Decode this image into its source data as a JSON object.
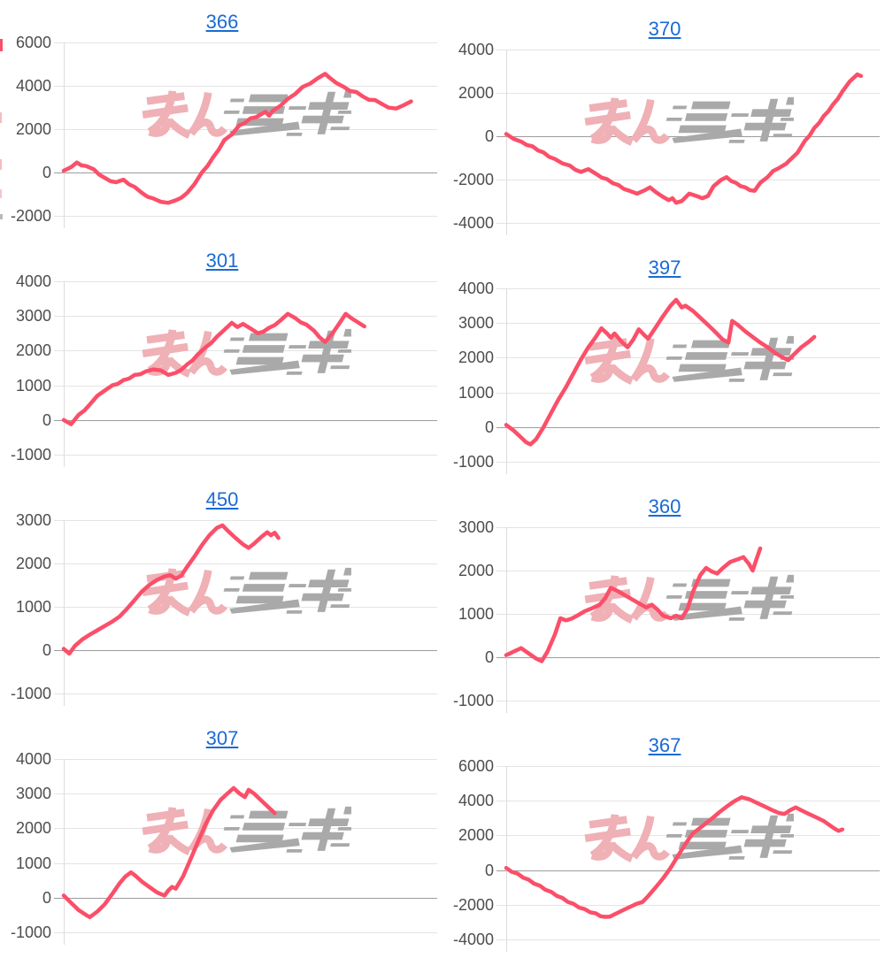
{
  "styles": {
    "line_color": "#fb4f69",
    "grid_color": "#e4e4e4",
    "zero_line_color": "#9c9c9c",
    "axis_border_color": "#dcdcdc",
    "label_color": "#4d4d4d",
    "title_color": "#1a6ad4",
    "watermark_pink": "#efb0b6",
    "watermark_gray": "#a9a9a9"
  },
  "icons": {
    "watermark": "minrepo-logo-watermark"
  },
  "edge_artifacts": {
    "description": "partial marks of a cropped chart at left screen edge",
    "red_mark_color": "#fb4f69",
    "pink_mark_color": "#f3bcc1",
    "gray_tick_color": "#b9b9b9"
  },
  "chart_data": [
    {
      "type": "line",
      "title": "366",
      "ylim": [
        -2000,
        6000
      ],
      "yticks": [
        6000,
        4000,
        2000,
        0,
        -2000
      ],
      "grid": true,
      "legend": false,
      "points": [
        [
          0,
          80
        ],
        [
          2,
          250
        ],
        [
          3.5,
          460
        ],
        [
          6,
          300
        ],
        [
          8,
          150
        ],
        [
          11,
          -250
        ],
        [
          14,
          -450
        ],
        [
          16,
          -330
        ],
        [
          19,
          -670
        ],
        [
          21,
          -950
        ],
        [
          24,
          -1200
        ],
        [
          28,
          -1400
        ],
        [
          30,
          -1280
        ],
        [
          33,
          -950
        ],
        [
          35,
          -540
        ],
        [
          37,
          0
        ],
        [
          40,
          700
        ],
        [
          43,
          1500
        ],
        [
          45,
          1750
        ],
        [
          47,
          2170
        ],
        [
          50,
          2500
        ],
        [
          53,
          2700
        ],
        [
          54,
          2800
        ],
        [
          55,
          2620
        ],
        [
          56,
          2850
        ],
        [
          60,
          3400
        ],
        [
          64,
          3950
        ],
        [
          68,
          4350
        ],
        [
          70,
          4550
        ],
        [
          71,
          4400
        ],
        [
          75,
          3950
        ],
        [
          80,
          3520
        ],
        [
          85,
          3180
        ],
        [
          87,
          2990
        ],
        [
          89,
          2950
        ],
        [
          91,
          3100
        ],
        [
          93,
          3280
        ]
      ]
    },
    {
      "type": "line",
      "title": "370",
      "ylim": [
        -4000,
        4000
      ],
      "yticks": [
        4000,
        2000,
        0,
        -2000,
        -4000
      ],
      "grid": true,
      "legend": false,
      "points": [
        [
          0,
          100
        ],
        [
          4,
          -250
        ],
        [
          7,
          -460
        ],
        [
          10,
          -750
        ],
        [
          13,
          -1050
        ],
        [
          17,
          -1350
        ],
        [
          20,
          -1650
        ],
        [
          22,
          -1520
        ],
        [
          24,
          -1730
        ],
        [
          27,
          -1980
        ],
        [
          30,
          -2250
        ],
        [
          33,
          -2520
        ],
        [
          35,
          -2650
        ],
        [
          37,
          -2500
        ],
        [
          38.5,
          -2360
        ],
        [
          40,
          -2570
        ],
        [
          42,
          -2800
        ],
        [
          43.5,
          -2950
        ],
        [
          44.5,
          -2860
        ],
        [
          45.5,
          -3070
        ],
        [
          47,
          -2990
        ],
        [
          49,
          -2650
        ],
        [
          51,
          -2760
        ],
        [
          52.5,
          -2860
        ],
        [
          54,
          -2760
        ],
        [
          55.5,
          -2310
        ],
        [
          57.5,
          -2020
        ],
        [
          59,
          -1890
        ],
        [
          61.5,
          -2150
        ],
        [
          64,
          -2360
        ],
        [
          66.5,
          -2520
        ],
        [
          68,
          -2150
        ],
        [
          70,
          -1880
        ],
        [
          71.5,
          -1600
        ],
        [
          73,
          -1470
        ],
        [
          75,
          -1260
        ],
        [
          76,
          -1090
        ],
        [
          78,
          -760
        ],
        [
          80,
          -210
        ],
        [
          82.5,
          380
        ],
        [
          85,
          930
        ],
        [
          87.5,
          1470
        ],
        [
          90,
          2060
        ],
        [
          92,
          2530
        ],
        [
          94,
          2850
        ],
        [
          95,
          2780
        ]
      ]
    },
    {
      "type": "line",
      "title": "301",
      "ylim": [
        -1000,
        4000
      ],
      "yticks": [
        4000,
        3000,
        2000,
        1000,
        0,
        -1000
      ],
      "grid": true,
      "legend": false,
      "points": [
        [
          0,
          0
        ],
        [
          2,
          -120
        ],
        [
          4,
          150
        ],
        [
          7,
          450
        ],
        [
          9,
          700
        ],
        [
          11,
          850
        ],
        [
          13,
          1000
        ],
        [
          16,
          1150
        ],
        [
          19,
          1300
        ],
        [
          22,
          1400
        ],
        [
          24,
          1460
        ],
        [
          26,
          1430
        ],
        [
          28,
          1300
        ],
        [
          30,
          1360
        ],
        [
          33,
          1600
        ],
        [
          36,
          1900
        ],
        [
          38,
          2100
        ],
        [
          41,
          2400
        ],
        [
          43,
          2600
        ],
        [
          45,
          2800
        ],
        [
          46.5,
          2680
        ],
        [
          48,
          2770
        ],
        [
          50,
          2640
        ],
        [
          52,
          2500
        ],
        [
          55,
          2660
        ],
        [
          58,
          2870
        ],
        [
          60,
          3060
        ],
        [
          62,
          2940
        ],
        [
          65,
          2750
        ],
        [
          67,
          2580
        ],
        [
          70,
          2250
        ],
        [
          72,
          2500
        ],
        [
          74,
          2820
        ],
        [
          75.5,
          3060
        ],
        [
          77,
          2940
        ],
        [
          79,
          2800
        ],
        [
          80.5,
          2700
        ]
      ]
    },
    {
      "type": "line",
      "title": "397",
      "ylim": [
        -1000,
        4000
      ],
      "yticks": [
        4000,
        3000,
        2000,
        1000,
        0,
        -1000
      ],
      "grid": true,
      "legend": false,
      "points": [
        [
          0,
          60
        ],
        [
          2,
          -100
        ],
        [
          4,
          -300
        ],
        [
          6.5,
          -500
        ],
        [
          8,
          -350
        ],
        [
          10,
          0
        ],
        [
          12,
          400
        ],
        [
          14,
          800
        ],
        [
          16,
          1150
        ],
        [
          18,
          1550
        ],
        [
          20,
          1950
        ],
        [
          22,
          2300
        ],
        [
          24,
          2600
        ],
        [
          25.5,
          2850
        ],
        [
          27,
          2700
        ],
        [
          28,
          2580
        ],
        [
          29,
          2700
        ],
        [
          31,
          2450
        ],
        [
          32.5,
          2300
        ],
        [
          34,
          2520
        ],
        [
          35.5,
          2820
        ],
        [
          37,
          2650
        ],
        [
          38,
          2550
        ],
        [
          40,
          2870
        ],
        [
          42,
          3200
        ],
        [
          44,
          3500
        ],
        [
          45.5,
          3670
        ],
        [
          47,
          3450
        ],
        [
          48,
          3500
        ],
        [
          50,
          3350
        ],
        [
          52,
          3150
        ],
        [
          54,
          2950
        ],
        [
          56,
          2740
        ],
        [
          58,
          2520
        ],
        [
          59.5,
          2440
        ],
        [
          60.5,
          3060
        ],
        [
          62,
          2950
        ],
        [
          64,
          2760
        ],
        [
          66,
          2600
        ],
        [
          68,
          2440
        ],
        [
          70,
          2300
        ],
        [
          72,
          2140
        ],
        [
          74,
          2010
        ],
        [
          75.5,
          1930
        ],
        [
          77,
          2090
        ],
        [
          79,
          2300
        ],
        [
          81,
          2460
        ],
        [
          82.5,
          2600
        ]
      ]
    },
    {
      "type": "line",
      "title": "450",
      "ylim": [
        -1000,
        3000
      ],
      "yticks": [
        3000,
        2000,
        1000,
        0,
        -1000
      ],
      "grid": true,
      "legend": false,
      "points": [
        [
          0,
          30
        ],
        [
          1.5,
          -80
        ],
        [
          3,
          100
        ],
        [
          5,
          250
        ],
        [
          7,
          360
        ],
        [
          9,
          460
        ],
        [
          11,
          560
        ],
        [
          13,
          660
        ],
        [
          15,
          780
        ],
        [
          17,
          960
        ],
        [
          19,
          1160
        ],
        [
          21,
          1360
        ],
        [
          23,
          1510
        ],
        [
          25,
          1620
        ],
        [
          27,
          1700
        ],
        [
          28.5,
          1730
        ],
        [
          30,
          1650
        ],
        [
          31.5,
          1720
        ],
        [
          33,
          1920
        ],
        [
          35,
          2160
        ],
        [
          37,
          2420
        ],
        [
          39,
          2650
        ],
        [
          41,
          2820
        ],
        [
          42.5,
          2880
        ],
        [
          44,
          2750
        ],
        [
          46,
          2590
        ],
        [
          48,
          2440
        ],
        [
          49.5,
          2360
        ],
        [
          51,
          2460
        ],
        [
          53,
          2620
        ],
        [
          54.5,
          2720
        ],
        [
          55.5,
          2650
        ],
        [
          56.5,
          2710
        ],
        [
          57.5,
          2590
        ]
      ]
    },
    {
      "type": "line",
      "title": "360",
      "ylim": [
        -1000,
        3000
      ],
      "yticks": [
        3000,
        2000,
        1000,
        0,
        -1000
      ],
      "grid": true,
      "legend": false,
      "points": [
        [
          0,
          50
        ],
        [
          2,
          130
        ],
        [
          4,
          210
        ],
        [
          6,
          90
        ],
        [
          8,
          -30
        ],
        [
          9.5,
          -90
        ],
        [
          11,
          120
        ],
        [
          13,
          520
        ],
        [
          14.5,
          900
        ],
        [
          16,
          850
        ],
        [
          17.5,
          890
        ],
        [
          19,
          960
        ],
        [
          21,
          1060
        ],
        [
          23,
          1130
        ],
        [
          25,
          1210
        ],
        [
          26.5,
          1360
        ],
        [
          28,
          1600
        ],
        [
          30,
          1520
        ],
        [
          32,
          1420
        ],
        [
          34,
          1320
        ],
        [
          36,
          1220
        ],
        [
          37.5,
          1150
        ],
        [
          39,
          1210
        ],
        [
          40.5,
          1100
        ],
        [
          42,
          960
        ],
        [
          44,
          900
        ],
        [
          45.5,
          960
        ],
        [
          47,
          900
        ],
        [
          48.5,
          1110
        ],
        [
          50,
          1510
        ],
        [
          52,
          1900
        ],
        [
          53.5,
          2060
        ],
        [
          55,
          1980
        ],
        [
          56.5,
          1930
        ],
        [
          58,
          2060
        ],
        [
          60,
          2200
        ],
        [
          62,
          2260
        ],
        [
          63.5,
          2310
        ],
        [
          65,
          2150
        ],
        [
          66,
          2000
        ],
        [
          67,
          2260
        ],
        [
          68,
          2510
        ]
      ]
    },
    {
      "type": "line",
      "title": "307",
      "ylim": [
        -1000,
        4000
      ],
      "yticks": [
        4000,
        3000,
        2000,
        1000,
        0,
        -1000
      ],
      "grid": true,
      "legend": false,
      "points": [
        [
          0,
          60
        ],
        [
          2,
          -150
        ],
        [
          4,
          -360
        ],
        [
          6,
          -500
        ],
        [
          7,
          -560
        ],
        [
          9,
          -400
        ],
        [
          11,
          -190
        ],
        [
          13,
          110
        ],
        [
          15,
          420
        ],
        [
          16.5,
          610
        ],
        [
          18,
          730
        ],
        [
          19,
          650
        ],
        [
          21,
          460
        ],
        [
          23,
          300
        ],
        [
          25,
          150
        ],
        [
          27,
          60
        ],
        [
          28,
          210
        ],
        [
          29,
          310
        ],
        [
          30,
          260
        ],
        [
          32,
          620
        ],
        [
          34,
          1120
        ],
        [
          36,
          1620
        ],
        [
          38,
          2120
        ],
        [
          40,
          2520
        ],
        [
          42,
          2820
        ],
        [
          44,
          3020
        ],
        [
          45.5,
          3160
        ],
        [
          47,
          3010
        ],
        [
          48.5,
          2900
        ],
        [
          49.5,
          3110
        ],
        [
          51,
          3000
        ],
        [
          53,
          2790
        ],
        [
          55,
          2590
        ],
        [
          56.5,
          2440
        ]
      ]
    },
    {
      "type": "line",
      "title": "367",
      "ylim": [
        -4000,
        6000
      ],
      "yticks": [
        6000,
        4000,
        2000,
        0,
        -2000,
        -4000
      ],
      "grid": true,
      "legend": false,
      "points": [
        [
          0,
          120
        ],
        [
          3,
          -200
        ],
        [
          6,
          -550
        ],
        [
          9,
          -900
        ],
        [
          12,
          -1250
        ],
        [
          15,
          -1600
        ],
        [
          18,
          -1950
        ],
        [
          21,
          -2250
        ],
        [
          24,
          -2500
        ],
        [
          26.5,
          -2700
        ],
        [
          29,
          -2550
        ],
        [
          31,
          -2340
        ],
        [
          33,
          -2140
        ],
        [
          35,
          -1940
        ],
        [
          36.5,
          -1840
        ],
        [
          38,
          -1500
        ],
        [
          40,
          -1000
        ],
        [
          42,
          -480
        ],
        [
          44,
          120
        ],
        [
          46,
          820
        ],
        [
          48,
          1520
        ],
        [
          50,
          2120
        ],
        [
          51.5,
          2360
        ],
        [
          53,
          2620
        ],
        [
          55,
          2960
        ],
        [
          57,
          3320
        ],
        [
          59,
          3660
        ],
        [
          61,
          3960
        ],
        [
          63,
          4200
        ],
        [
          65,
          4090
        ],
        [
          67,
          3890
        ],
        [
          69,
          3690
        ],
        [
          71,
          3480
        ],
        [
          73,
          3290
        ],
        [
          74.5,
          3240
        ],
        [
          76,
          3450
        ],
        [
          77.5,
          3610
        ],
        [
          79,
          3450
        ],
        [
          81,
          3240
        ],
        [
          83,
          3040
        ],
        [
          85,
          2830
        ],
        [
          86.5,
          2600
        ],
        [
          88,
          2380
        ],
        [
          89,
          2260
        ],
        [
          90,
          2340
        ]
      ]
    }
  ]
}
